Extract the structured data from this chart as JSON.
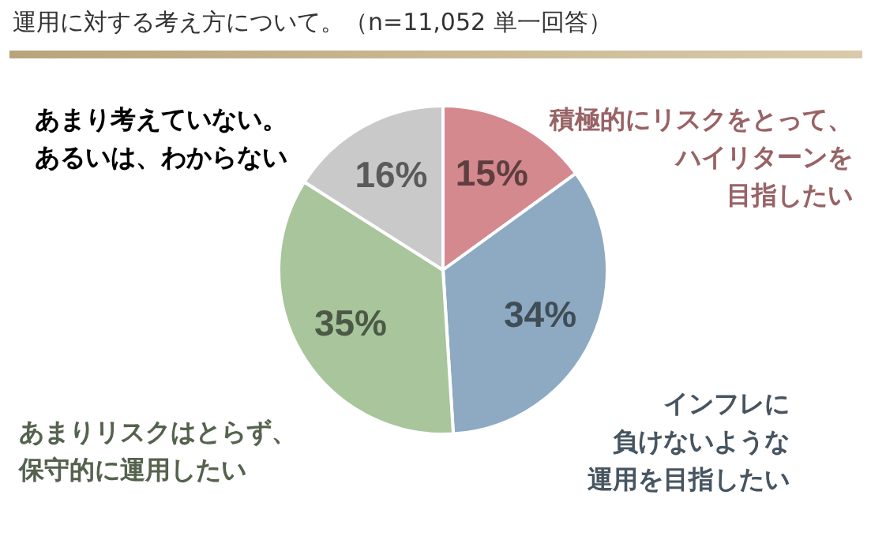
{
  "chart_data": {
    "type": "pie",
    "title": "運用に対する考え方について。（n=11,052 単一回答）",
    "categories": [
      "積極的にリスクをとって、ハイリターンを目指したい",
      "インフレに負けないような運用を目指したい",
      "あまりリスクはとらず、保守的に運用したい",
      "あまり考えていない。あるいは、わからない"
    ],
    "values": [
      15,
      34,
      35,
      16
    ],
    "value_labels": [
      "15%",
      "34%",
      "35%",
      "16%"
    ],
    "colors": [
      "#d4898e",
      "#8eaac2",
      "#a9c59b",
      "#c9c9c9"
    ]
  }
}
